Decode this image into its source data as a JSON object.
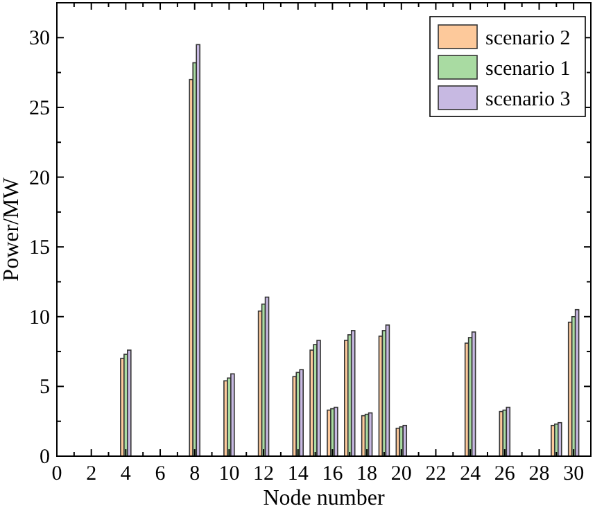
{
  "chart_data": {
    "type": "bar",
    "xlabel": "Node number",
    "ylabel": "Power/MW",
    "x": [
      4,
      8,
      10,
      12,
      14,
      15,
      16,
      17,
      18,
      19,
      20,
      24,
      26,
      29,
      30
    ],
    "series": [
      {
        "name": "scenario 2",
        "color": "#fdc99b",
        "values": [
          7.0,
          27.0,
          5.4,
          10.4,
          5.7,
          7.6,
          3.3,
          8.3,
          2.9,
          8.6,
          2.0,
          8.1,
          3.2,
          2.2,
          9.6
        ]
      },
      {
        "name": "scenario 1",
        "color": "#a9dba2",
        "values": [
          7.3,
          28.2,
          5.6,
          10.9,
          6.0,
          8.0,
          3.4,
          8.7,
          3.0,
          9.0,
          2.1,
          8.5,
          3.3,
          2.3,
          10.0
        ]
      },
      {
        "name": "scenario 3",
        "color": "#c7b9e2",
        "values": [
          7.6,
          29.5,
          5.9,
          11.4,
          6.2,
          8.3,
          3.5,
          9.0,
          3.1,
          9.4,
          2.2,
          8.9,
          3.5,
          2.4,
          10.5
        ]
      }
    ],
    "xlim": [
      0,
      31
    ],
    "xticks": [
      0,
      {
        "value": 1,
        "label": null
      },
      2,
      {
        "value": 3,
        "label": null
      },
      4,
      {
        "value": 5,
        "label": null
      },
      6,
      {
        "value": 7,
        "label": null
      },
      8,
      {
        "value": 9,
        "label": null
      },
      10,
      {
        "value": 11,
        "label": null
      },
      12,
      {
        "value": 13,
        "label": null
      },
      14,
      {
        "value": 15,
        "label": null
      },
      16,
      {
        "value": 17,
        "label": null
      },
      18,
      {
        "value": 19,
        "label": null
      },
      20,
      {
        "value": 21,
        "label": null
      },
      22,
      {
        "value": 23,
        "label": null
      },
      24,
      {
        "value": 25,
        "label": null
      },
      26,
      {
        "value": 27,
        "label": null
      },
      28,
      {
        "value": 29,
        "label": null
      },
      30
    ],
    "ylim": [
      0,
      32.5
    ],
    "yticks": [
      0,
      {
        "value": 2.5,
        "label": null
      },
      5,
      {
        "value": 7.5,
        "label": null
      },
      10,
      {
        "value": 12.5,
        "label": null
      },
      15,
      {
        "value": 17.5,
        "label": null
      },
      20,
      {
        "value": 22.5,
        "label": null
      },
      25,
      {
        "value": 27.5,
        "label": null
      },
      30
    ],
    "legend": "top right",
    "grid": false
  }
}
